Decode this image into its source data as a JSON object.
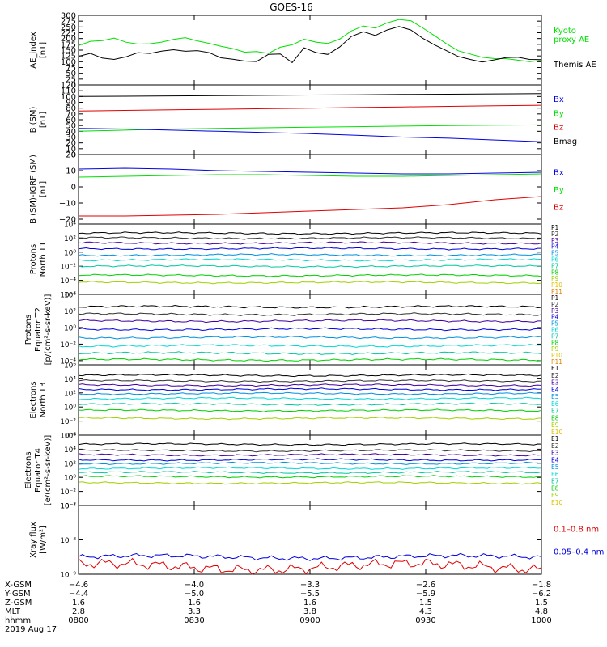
{
  "title": "GOES-16",
  "colors": {
    "black": "#000000",
    "green": "#00e000",
    "red": "#e00000",
    "blue": "#0000e0",
    "p_colors": [
      "#000000",
      "#303030",
      "#4000a0",
      "#0000e0",
      "#0090e0",
      "#00d8d8",
      "#00c8a0",
      "#00d000",
      "#a0d000",
      "#e0c000",
      "#e08000",
      "#e00000"
    ]
  },
  "chart_data": [
    {
      "type": "line",
      "ylabel": [
        "AE_index",
        "[nT]"
      ],
      "ylim": [
        0,
        300
      ],
      "yticks": [
        0,
        25,
        50,
        75,
        100,
        125,
        150,
        175,
        200,
        225,
        250,
        275,
        300
      ],
      "ytick_labels": [
        "0",
        "25",
        "50",
        "75",
        "100",
        "125",
        "150",
        "175",
        "200",
        "225",
        "250",
        "275",
        "300"
      ],
      "legend": [
        {
          "text": "Kyoto",
          "color": "green"
        },
        {
          "text": "proxy AE",
          "color": "green"
        },
        {
          "text": "Themis AE",
          "color": "black"
        }
      ],
      "series": [
        {
          "name": "Kyoto proxy AE",
          "color": "green",
          "values": [
            170,
            185,
            190,
            200,
            185,
            180,
            178,
            185,
            195,
            200,
            190,
            180,
            168,
            160,
            140,
            142,
            135,
            160,
            175,
            200,
            185,
            180,
            195,
            230,
            255,
            245,
            270,
            285,
            275,
            245,
            210,
            175,
            150,
            135,
            120,
            115,
            110,
            105,
            100,
            105
          ]
        },
        {
          "name": "Themis AE",
          "color": "black",
          "values": [
            120,
            135,
            115,
            110,
            125,
            140,
            135,
            145,
            148,
            145,
            150,
            140,
            120,
            110,
            100,
            100,
            130,
            135,
            100,
            160,
            140,
            130,
            160,
            210,
            230,
            215,
            240,
            250,
            235,
            200,
            170,
            150,
            125,
            110,
            100,
            105,
            115,
            120,
            110,
            112
          ]
        }
      ]
    },
    {
      "type": "line",
      "ylabel": [
        "B (SM)",
        "[nT]"
      ],
      "ylim": [
        0,
        120
      ],
      "yticks": [
        0,
        10,
        20,
        30,
        40,
        50,
        60,
        70,
        80,
        90,
        100,
        110,
        120
      ],
      "ytick_labels": [
        "0",
        "10",
        "20",
        "30",
        "40",
        "50",
        "60",
        "70",
        "80",
        "90",
        "100",
        "110",
        "120"
      ],
      "legend": [
        {
          "text": "Bx",
          "color": "blue"
        },
        {
          "text": "By",
          "color": "green"
        },
        {
          "text": "Bz",
          "color": "red"
        },
        {
          "text": "Bmag",
          "color": "black"
        }
      ],
      "series": [
        {
          "name": "Bmag",
          "color": "black",
          "values": [
            100,
            100.5,
            101,
            101.5,
            102,
            102.5,
            103,
            103.5,
            104,
            104.5,
            105
          ]
        },
        {
          "name": "Bz",
          "color": "red",
          "values": [
            75,
            76,
            77,
            78,
            79,
            80,
            81,
            82,
            83,
            84,
            85
          ]
        },
        {
          "name": "By",
          "color": "green",
          "values": [
            40,
            42,
            44,
            45,
            46,
            47,
            48,
            49,
            50,
            50.5,
            51
          ]
        },
        {
          "name": "Bx",
          "color": "blue",
          "values": [
            45,
            44,
            42,
            40,
            38,
            36,
            33,
            30,
            28,
            25,
            22
          ]
        }
      ]
    },
    {
      "type": "line",
      "ylabel": [
        "B (SM)-IGRF (SM)",
        "[nT]"
      ],
      "ylim": [
        -23,
        20
      ],
      "yticks": [
        -20,
        -10,
        0,
        10,
        20
      ],
      "ytick_labels": [
        "−20",
        "−10",
        "0",
        "10",
        "20"
      ],
      "legend": [
        {
          "text": "Bx",
          "color": "blue"
        },
        {
          "text": "By",
          "color": "green"
        },
        {
          "text": "Bz",
          "color": "red"
        }
      ],
      "series": [
        {
          "name": "Bx",
          "color": "blue",
          "values": [
            11,
            11.5,
            11,
            10,
            9.5,
            9,
            8.5,
            8,
            8,
            8.5,
            9
          ]
        },
        {
          "name": "By",
          "color": "green",
          "values": [
            6,
            6.5,
            7,
            7.5,
            7.5,
            7,
            6.5,
            6.5,
            7,
            7.5,
            8
          ]
        },
        {
          "name": "Bz",
          "color": "red",
          "values": [
            -18,
            -18,
            -17.5,
            -17,
            -16,
            -15,
            -14,
            -13,
            -11,
            -8,
            -6
          ]
        }
      ]
    },
    {
      "type": "line",
      "ylabel": [
        "Protons",
        "North T1"
      ],
      "log": true,
      "ylim": [
        -6,
        4
      ],
      "yticks": [
        -6,
        -4,
        -2,
        0,
        2,
        4
      ],
      "ytick_labels": [
        "10⁻⁶",
        "10⁻⁴",
        "10⁻²",
        "10⁰",
        "10²",
        "10⁴"
      ],
      "legend_labels": [
        "P1",
        "P2",
        "P3",
        "P4",
        "P5",
        "P6",
        "P7",
        "P8",
        "P9",
        "P10",
        "P11"
      ],
      "series": [
        {
          "name": "P1",
          "base": 2.7
        },
        {
          "name": "P2",
          "base": 2.0
        },
        {
          "name": "P3",
          "base": 1.3
        },
        {
          "name": "P4",
          "base": 0.5
        },
        {
          "name": "P5",
          "base": -0.4
        },
        {
          "name": "P6",
          "base": -1.1
        },
        {
          "name": "P7",
          "base": -2.0
        },
        {
          "name": "P8",
          "base": -3.3
        },
        {
          "name": "P9",
          "base": -4.3
        }
      ]
    },
    {
      "type": "line",
      "ylabel": [
        "Protons",
        "Equator T2",
        "[p/(cm²-s-sr-keV)]"
      ],
      "log": true,
      "ylim": [
        -4.5,
        4
      ],
      "yticks": [
        -4,
        -2,
        0,
        2,
        4
      ],
      "ytick_labels": [
        "10⁻⁴",
        "10⁻²",
        "10⁰",
        "10²",
        "10⁴"
      ],
      "legend_labels": [
        "P1",
        "P2",
        "P3",
        "P4",
        "P5",
        "P6",
        "P7",
        "P8",
        "P9",
        "P10",
        "P11"
      ],
      "series": [
        {
          "name": "P1",
          "base": 2.5
        },
        {
          "name": "P2",
          "base": 1.6
        },
        {
          "name": "P3",
          "base": 0.8
        },
        {
          "name": "P4",
          "base": -0.2
        },
        {
          "name": "P5",
          "base": -1.2
        },
        {
          "name": "P6",
          "base": -2.2
        },
        {
          "name": "P7",
          "base": -3.1
        },
        {
          "name": "P8",
          "base": -3.9
        }
      ]
    },
    {
      "type": "line",
      "ylabel": [
        "Electrons",
        "North T3"
      ],
      "log": true,
      "ylim": [
        -4,
        6
      ],
      "yticks": [
        -4,
        -2,
        0,
        2,
        4,
        6
      ],
      "ytick_labels": [
        "10⁻⁴",
        "10⁻²",
        "10⁰",
        "10²",
        "10⁴",
        "10⁶"
      ],
      "legend_labels": [
        "E1",
        "E2",
        "E3",
        "E4",
        "E5",
        "E6",
        "E7",
        "E8",
        "E9",
        "E10"
      ],
      "series": [
        {
          "name": "E1",
          "base": 4.5
        },
        {
          "name": "E2",
          "base": 3.7
        },
        {
          "name": "E3",
          "base": 3.1
        },
        {
          "name": "E4",
          "base": 2.5
        },
        {
          "name": "E5",
          "base": 1.9
        },
        {
          "name": "E6",
          "base": 1.2
        },
        {
          "name": "E7",
          "base": 0.4
        },
        {
          "name": "E8",
          "base": -0.5
        },
        {
          "name": "E9",
          "base": -1.6
        }
      ]
    },
    {
      "type": "line",
      "ylabel": [
        "Electrons",
        "Equator T4",
        "[e/(cm²-s-sr-keV)]"
      ],
      "log": true,
      "ylim": [
        -4,
        6
      ],
      "yticks": [
        -4,
        -2,
        0,
        2,
        4,
        6
      ],
      "ytick_labels": [
        "10⁻⁴",
        "10⁻²",
        "10⁰",
        "10²",
        "10⁴",
        "10⁶"
      ],
      "legend_labels": [
        "E1",
        "E2",
        "E3",
        "E4",
        "E5",
        "E6",
        "E7",
        "E8",
        "E9",
        "E10"
      ],
      "series": [
        {
          "name": "E1",
          "base": 4.7
        },
        {
          "name": "E2",
          "base": 3.8
        },
        {
          "name": "E3",
          "base": 3.2
        },
        {
          "name": "E4",
          "base": 2.5
        },
        {
          "name": "E5",
          "base": 2.0
        },
        {
          "name": "E6",
          "base": 1.3
        },
        {
          "name": "E7",
          "base": 0.7
        },
        {
          "name": "E8",
          "base": 0.1
        },
        {
          "name": "E9",
          "base": -0.8
        }
      ]
    },
    {
      "type": "line",
      "ylabel": [
        "Xray flux",
        "[W/m²]"
      ],
      "log": true,
      "ylim": [
        -9,
        -7
      ],
      "yticks": [
        -9,
        -8,
        -7
      ],
      "ytick_labels": [
        "10⁻⁹",
        "10⁻⁸",
        "10⁻⁷"
      ],
      "legend": [
        {
          "text": "0.1–0.8 nm",
          "color": "red"
        },
        {
          "text": "0.05–0.4 nm",
          "color": "blue"
        }
      ],
      "series": [
        {
          "name": "0.05–0.4 nm",
          "color": "blue",
          "base": -8.5,
          "amp": 0.07
        },
        {
          "name": "0.1–0.8 nm",
          "color": "red",
          "base": -8.78,
          "amp": 0.16
        }
      ]
    }
  ],
  "x_axis": {
    "rows": [
      {
        "label": "X-GSM",
        "values": [
          "−4.6",
          "−4.0",
          "−3.3",
          "−2.6",
          "−1.8"
        ]
      },
      {
        "label": "Y-GSM",
        "values": [
          "−4.4",
          "−5.0",
          "−5.5",
          "−5.9",
          "−6.2"
        ]
      },
      {
        "label": "Z-GSM",
        "values": [
          "1.6",
          "1.6",
          "1.6",
          "1.5",
          "1.5"
        ]
      },
      {
        "label": "MLT",
        "values": [
          "2.8",
          "3.3",
          "3.8",
          "4.3",
          "4.8"
        ]
      },
      {
        "label": "hhmm",
        "values": [
          "0800",
          "0830",
          "0900",
          "0930",
          "1000"
        ]
      }
    ],
    "date": "2019 Aug 17"
  }
}
